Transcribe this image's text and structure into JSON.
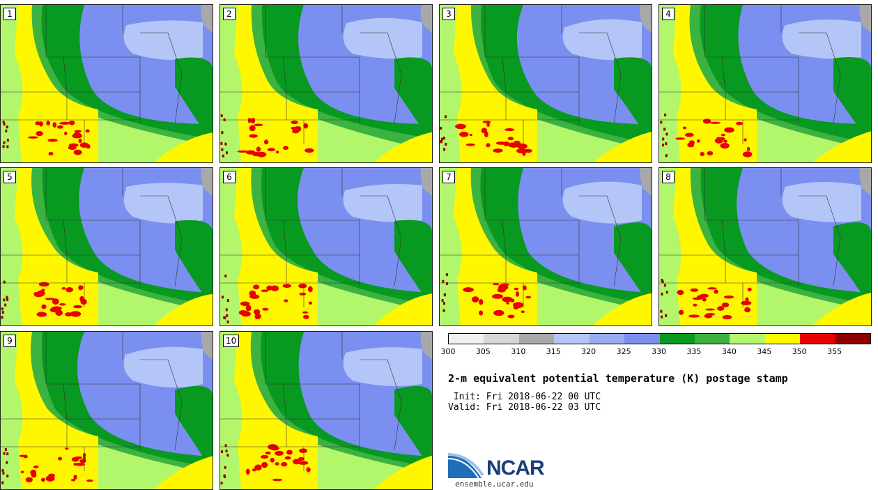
{
  "panels": [
    {
      "label": "1"
    },
    {
      "label": "2"
    },
    {
      "label": "3"
    },
    {
      "label": "4"
    },
    {
      "label": "5"
    },
    {
      "label": "6"
    },
    {
      "label": "7"
    },
    {
      "label": "8"
    },
    {
      "label": "9"
    },
    {
      "label": "10"
    }
  ],
  "colorbar": {
    "colors": [
      "#f0f0f0",
      "#d6d6d6",
      "#a8a8a8",
      "#b4c6f8",
      "#98acf6",
      "#7b8ff0",
      "#089920",
      "#3cb241",
      "#b2f66b",
      "#fff700",
      "#e80000",
      "#8e0000"
    ],
    "ticks": [
      "300",
      "305",
      "310",
      "315",
      "320",
      "325",
      "330",
      "335",
      "340",
      "345",
      "350",
      "355"
    ]
  },
  "title": "2-m equivalent potential temperature (K) postage stamp",
  "init_line": " Init: Fri 2018-06-22 00 UTC",
  "valid_line": "Valid: Fri 2018-06-22 03 UTC",
  "logo": {
    "text": "NCAR",
    "url": "ensemble.ucar.edu"
  }
}
